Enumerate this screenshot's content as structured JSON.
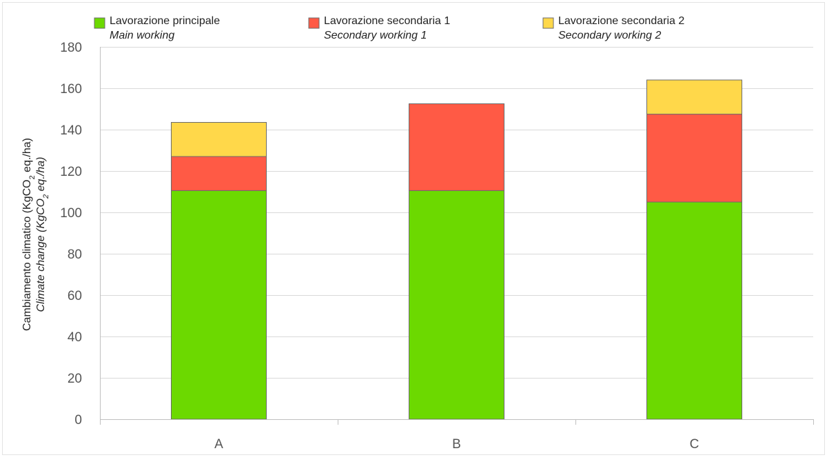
{
  "chart_data": {
    "type": "bar",
    "stacked": true,
    "categories": [
      "A",
      "B",
      "C"
    ],
    "series": [
      {
        "name": "Lavorazione principale",
        "name_en": "Main working",
        "color": "#6cd900",
        "values": [
          110.5,
          110.5,
          105
        ]
      },
      {
        "name": "Lavorazione secondaria 1",
        "name_en": "Secondary working 1",
        "color": "#ff5a45",
        "values": [
          16.5,
          42,
          42.5
        ]
      },
      {
        "name": "Lavorazione secondaria 2",
        "name_en": "Secondary working 2",
        "color": "#ffd84a",
        "values": [
          16.5,
          0,
          16.5
        ]
      }
    ],
    "ylim": [
      0,
      180
    ],
    "yticks": [
      0,
      20,
      40,
      60,
      80,
      100,
      120,
      140,
      160,
      180
    ],
    "ylabel": {
      "it_prefix": "Cambiamento climatico (KgCO",
      "it_sub": "2",
      "it_suffix": " eq./ha)",
      "en_prefix": "Climate change (KgCO",
      "en_sub": "2",
      "en_suffix": " eq./ha)"
    },
    "grid": true,
    "legend_position": "top"
  }
}
